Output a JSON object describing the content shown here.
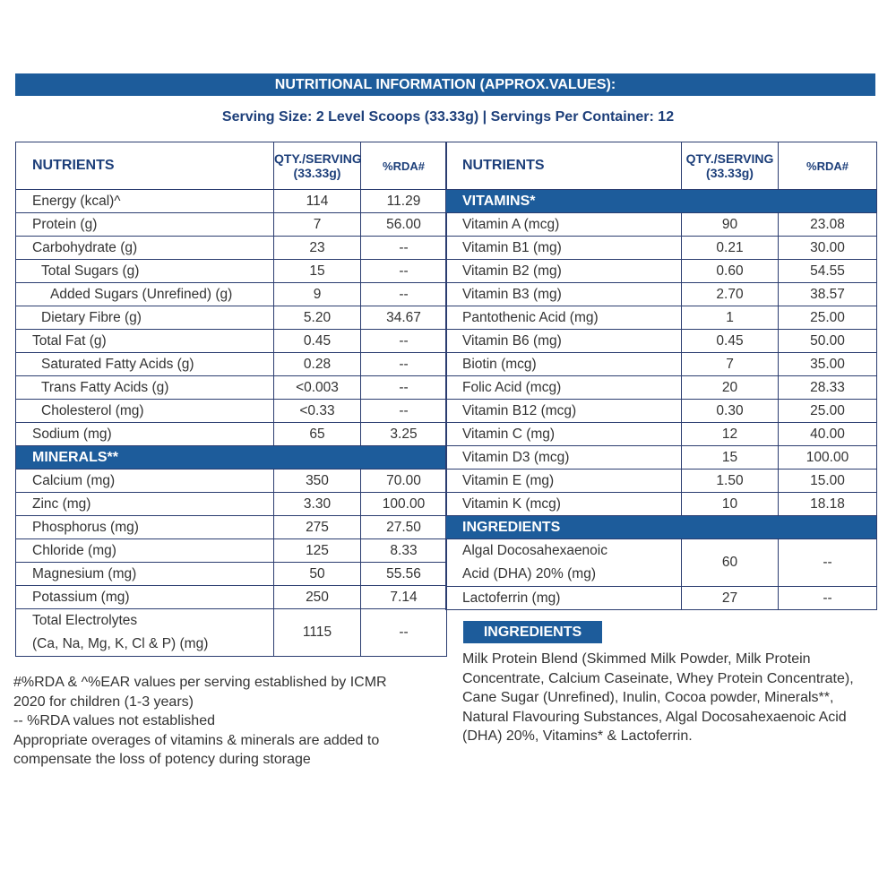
{
  "title": "NUTRITIONAL INFORMATION (APPROX.VALUES):",
  "serving": "Serving Size: 2 Level Scoops (33.33g) | Servings Per Container: 12",
  "colors": {
    "accent": "#1d5c9b",
    "border": "#2b3d70"
  },
  "headers": {
    "nutrients": "NUTRIENTS",
    "qty": "QTY./SERVING",
    "qty_sub": "(33.33g)",
    "rda": "%RDA#"
  },
  "left_rows": [
    {
      "name": "Energy (kcal)^",
      "qty": "114",
      "rda": "11.29",
      "level": 0
    },
    {
      "name": "Protein (g)",
      "qty": "7",
      "rda": "56.00",
      "level": 0
    },
    {
      "name": "Carbohydrate (g)",
      "qty": "23",
      "rda": "--",
      "level": 0
    },
    {
      "name": "Total Sugars (g)",
      "qty": "15",
      "rda": "--",
      "level": 1
    },
    {
      "name": "Added Sugars (Unrefined) (g)",
      "qty": "9",
      "rda": "--",
      "level": 2
    },
    {
      "name": "Dietary Fibre (g)",
      "qty": "5.20",
      "rda": "34.67",
      "level": 1
    },
    {
      "name": "Total Fat (g)",
      "qty": "0.45",
      "rda": "--",
      "level": 0
    },
    {
      "name": "Saturated Fatty Acids (g)",
      "qty": "0.28",
      "rda": "--",
      "level": 1
    },
    {
      "name": "Trans Fatty Acids (g)",
      "qty": "<0.003",
      "rda": "--",
      "level": 1
    },
    {
      "name": "Cholesterol (mg)",
      "qty": "<0.33",
      "rda": "--",
      "level": 1
    },
    {
      "name": "Sodium (mg)",
      "qty": "65",
      "rda": "3.25",
      "level": 0
    },
    {
      "section": "MINERALS**"
    },
    {
      "name": "Calcium (mg)",
      "qty": "350",
      "rda": "70.00",
      "level": 0
    },
    {
      "name": "Zinc (mg)",
      "qty": "3.30",
      "rda": "100.00",
      "level": 0
    },
    {
      "name": "Phosphorus (mg)",
      "qty": "275",
      "rda": "27.50",
      "level": 0
    },
    {
      "name": "Chloride (mg)",
      "qty": "125",
      "rda": "8.33",
      "level": 0
    },
    {
      "name": "Magnesium (mg)",
      "qty": "50",
      "rda": "55.56",
      "level": 0
    },
    {
      "name": "Potassium (mg)",
      "qty": "250",
      "rda": "7.14",
      "level": 0
    },
    {
      "name": "Total Electrolytes",
      "name2": "(Ca, Na, Mg, K, Cl & P) (mg)",
      "qty": "1115",
      "rda": "--",
      "level": 0
    }
  ],
  "right_rows": [
    {
      "section": "VITAMINS*"
    },
    {
      "name": "Vitamin A (mcg)",
      "qty": "90",
      "rda": "23.08"
    },
    {
      "name": "Vitamin B1 (mg)",
      "qty": "0.21",
      "rda": "30.00"
    },
    {
      "name": "Vitamin B2 (mg)",
      "qty": "0.60",
      "rda": "54.55"
    },
    {
      "name": "Vitamin B3 (mg)",
      "qty": "2.70",
      "rda": "38.57"
    },
    {
      "name": "Pantothenic Acid (mg)",
      "qty": "1",
      "rda": "25.00"
    },
    {
      "name": "Vitamin B6 (mg)",
      "qty": "0.45",
      "rda": "50.00"
    },
    {
      "name": "Biotin (mcg)",
      "qty": "7",
      "rda": "35.00"
    },
    {
      "name": "Folic Acid (mcg)",
      "qty": "20",
      "rda": "28.33"
    },
    {
      "name": "Vitamin B12 (mcg)",
      "qty": "0.30",
      "rda": "25.00"
    },
    {
      "name": "Vitamin C (mg)",
      "qty": "12",
      "rda": "40.00"
    },
    {
      "name": "Vitamin D3 (mcg)",
      "qty": "15",
      "rda": "100.00"
    },
    {
      "name": "Vitamin E (mg)",
      "qty": "1.50",
      "rda": "15.00"
    },
    {
      "name": "Vitamin K (mcg)",
      "qty": "10",
      "rda": "18.18"
    },
    {
      "section": "INGREDIENTS"
    },
    {
      "name": "Algal Docosahexaenoic",
      "name2": "Acid (DHA) 20% (mg)",
      "qty": "60",
      "rda": "--"
    },
    {
      "name": "Lactoferrin (mg)",
      "qty": "27",
      "rda": "--"
    }
  ],
  "ingredients": {
    "label": "INGREDIENTS",
    "text": "Milk Protein Blend (Skimmed Milk Powder, Milk Protein Concentrate, Calcium Caseinate, Whey Protein Concentrate), Cane Sugar (Unrefined), Inulin, Cocoa powder, Minerals**, Natural Flavouring Substances, Algal Docosahexaenoic Acid (DHA) 20%, Vitamins* & Lactoferrin."
  },
  "footnotes": [
    "#%RDA & ^%EAR values per serving established by ICMR",
    "2020 for children (1-3 years)",
    "-- %RDA values not established",
    "Appropriate overages of vitamins & minerals are added to",
    "compensate the loss of potency during storage"
  ]
}
